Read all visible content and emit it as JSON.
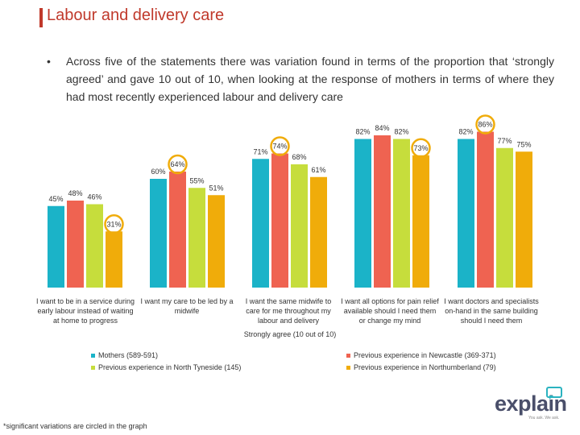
{
  "slide": {
    "title": "Labour and delivery care",
    "bullet_symbol": "•",
    "bullet_text": "Across five of the statements there was variation found in terms of the proportion that ‘strongly agreed’ and gave 10 out of 10, when looking at the response of mothers in terms of where they had most recently experienced labour and delivery care",
    "footnote": "*significant variations are circled in the graph",
    "logo_text": "explain",
    "logo_tagline": "You ask. We ask."
  },
  "colors": {
    "mothers": "#1bb3c8",
    "newcastle": "#ef6351",
    "north_tyneside": "#c6dd3c",
    "northumberland": "#f0ac0a",
    "circle": "#f0ac0a",
    "title": "#c0392b"
  },
  "chart_data": {
    "type": "bar",
    "xlabel": "Strongly agree (10 out of 10)",
    "ylabel": "",
    "ylim": [
      0,
      100
    ],
    "categories": [
      "I want to be in a service during early labour instead of waiting at home to progress",
      "I want my care to be led by a midwife",
      "I want the same midwife to care for me throughout my labour and delivery",
      "I want all options for pain relief available should I need them or change my mind",
      "I want doctors and specialists on-hand in the same building should I need them"
    ],
    "series": [
      {
        "name": "Mothers (589-591)",
        "color_key": "mothers",
        "values": [
          45,
          60,
          71,
          82,
          82
        ],
        "labels": [
          "45%",
          "60%",
          "71%",
          "82%",
          "82%"
        ]
      },
      {
        "name": "Previous experience in Newcastle (369-371)",
        "color_key": "newcastle",
        "values": [
          48,
          64,
          74,
          84,
          86
        ],
        "labels": [
          "48%",
          "64%",
          "74%",
          "84%",
          "86%"
        ]
      },
      {
        "name": "Previous experience in North Tyneside (145)",
        "color_key": "north_tyneside",
        "values": [
          46,
          55,
          68,
          82,
          77
        ],
        "labels": [
          "46%",
          "55%",
          "68%",
          "82%",
          "77%"
        ]
      },
      {
        "name": "Previous experience in Northumberland (79)",
        "color_key": "northumberland",
        "values": [
          31,
          51,
          61,
          73,
          75
        ],
        "labels": [
          "31%",
          "51%",
          "61%",
          "73%",
          "75%"
        ]
      }
    ],
    "circled": [
      {
        "category": 0,
        "series": 3
      },
      {
        "category": 1,
        "series": 1
      },
      {
        "category": 2,
        "series": 1
      },
      {
        "category": 3,
        "series": 3
      },
      {
        "category": 4,
        "series": 1
      }
    ],
    "legend": [
      {
        "label": "Mothers (589-591)",
        "color_key": "mothers"
      },
      {
        "label": "Previous experience in Newcastle (369-371)",
        "color_key": "newcastle"
      },
      {
        "label": "Previous experience in North Tyneside (145)",
        "color_key": "north_tyneside"
      },
      {
        "label": "Previous experience in Northumberland (79)",
        "color_key": "northumberland"
      }
    ]
  }
}
